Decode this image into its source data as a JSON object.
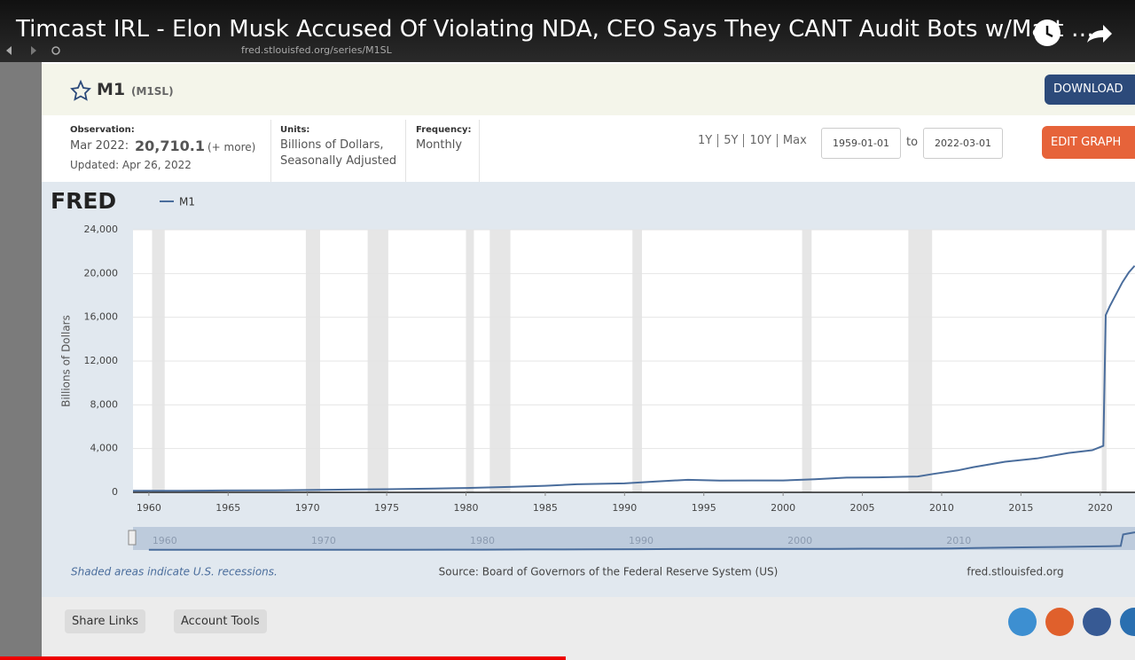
{
  "video": {
    "title": "Timcast IRL - Elon Musk Accused Of Violating NDA, CEO Says They CANT Audit Bots w/Matt …"
  },
  "browser": {
    "url": "fred.stlouisfed.org/series/M1SL"
  },
  "header": {
    "series": "M1",
    "code": "(M1SL)",
    "download": "DOWNLOAD"
  },
  "meta": {
    "observation_label": "Observation:",
    "observation_date": "Mar 2022:",
    "observation_value": "20,710.1",
    "more": "(+ more)",
    "updated": "Updated: Apr 26, 2022",
    "units_label": "Units:",
    "units_1": "Billions of Dollars,",
    "units_2": "Seasonally Adjusted",
    "frequency_label": "Frequency:",
    "frequency": "Monthly"
  },
  "controls": {
    "ranges": [
      "1Y",
      "5Y",
      "10Y",
      "Max"
    ],
    "start": "1959-01-01",
    "to": "to",
    "end": "2022-03-01",
    "edit": "EDIT GRAPH"
  },
  "chart_data": {
    "type": "line",
    "logo": "FRED",
    "y_label": "Billions of Dollars",
    "x": [
      1959,
      1962,
      1965,
      1968,
      1970,
      1973,
      1975,
      1978,
      1980,
      1983,
      1985,
      1987,
      1990,
      1992,
      1994,
      1996,
      1998,
      2000,
      2002,
      2004,
      2006,
      2008.5,
      2009.5,
      2011,
      2012,
      2014,
      2016,
      2018,
      2019.5,
      2020.2,
      2020.35,
      2020.6,
      2021,
      2021.4,
      2021.8,
      2022.17
    ],
    "series": [
      {
        "name": "M1",
        "color": "#4a6d9c",
        "values": [
          139,
          147,
          168,
          190,
          210,
          260,
          280,
          350,
          400,
          510,
          600,
          740,
          820,
          1000,
          1140,
          1080,
          1090,
          1090,
          1190,
          1350,
          1370,
          1450,
          1690,
          2000,
          2300,
          2800,
          3100,
          3600,
          3850,
          4250,
          16200,
          17000,
          18100,
          19200,
          20100,
          20710
        ]
      }
    ],
    "recessions": [
      [
        1960.2,
        1961.0
      ],
      [
        1969.9,
        1970.8
      ],
      [
        1973.8,
        1975.1
      ],
      [
        1980.0,
        1980.5
      ],
      [
        1981.5,
        1982.8
      ],
      [
        1990.5,
        1991.1
      ],
      [
        2001.2,
        2001.8
      ],
      [
        2007.9,
        2009.4
      ],
      [
        2020.1,
        2020.4
      ]
    ],
    "xlim": [
      1959,
      2022.25
    ],
    "xticks": [
      1960,
      1965,
      1970,
      1975,
      1980,
      1985,
      1990,
      1995,
      2000,
      2005,
      2010,
      2015,
      2020
    ],
    "ylim": [
      0,
      24000
    ],
    "yticks": [
      0,
      {
        "value": 4000,
        "label": "4,000"
      },
      {
        "value": 8000,
        "label": "8,000"
      },
      {
        "value": 12000,
        "label": "12,000"
      },
      {
        "value": 16000,
        "label": "16,000"
      },
      {
        "value": 20000,
        "label": "20,000"
      },
      {
        "value": 24000,
        "label": "24,000"
      }
    ],
    "grid": true,
    "navigator_xlim": [
      1958,
      2021.1
    ],
    "navigator_xticks": [
      1960,
      1970,
      1980,
      1990,
      2000,
      2010
    ],
    "note": "Shaded areas indicate U.S. recessions.",
    "source": "Source: Board of Governors of the Federal Reserve System (US)",
    "site": "fred.stlouisfed.org"
  },
  "footer": {
    "share": "Share Links",
    "account": "Account Tools"
  }
}
